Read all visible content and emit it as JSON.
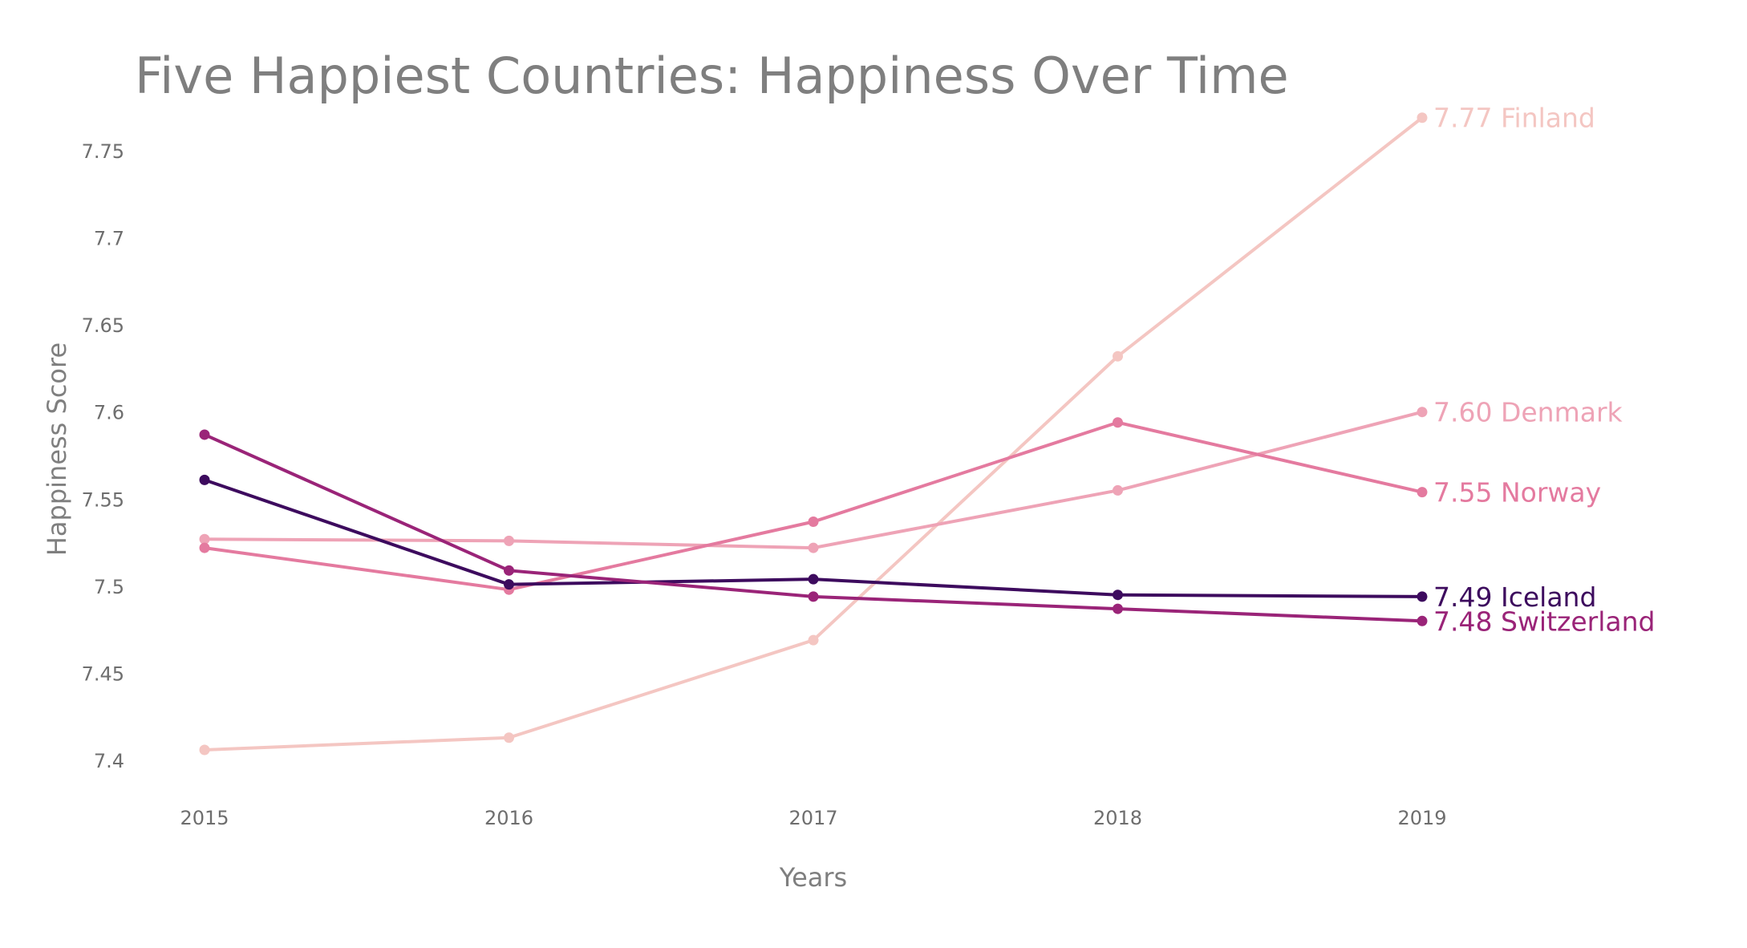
{
  "chart_data": {
    "type": "line",
    "title": "Five Happiest Countries: Happiness Over Time",
    "xlabel": "Years",
    "ylabel": "Happiness Score",
    "x": [
      2015,
      2016,
      2017,
      2018,
      2019
    ],
    "x_tick_labels": [
      "2015",
      "2016",
      "2017",
      "2018",
      "2019"
    ],
    "y_ticks": [
      7.4,
      7.45,
      7.5,
      7.55,
      7.6,
      7.65,
      7.7,
      7.75
    ],
    "y_tick_labels": [
      "7.4",
      "7.45",
      "7.5",
      "7.55",
      "7.6",
      "7.65",
      "7.7",
      "7.75"
    ],
    "ylim": [
      7.38,
      7.785
    ],
    "xlim": [
      2014.95,
      2019.8
    ],
    "grid": false,
    "legend": "none",
    "series": [
      {
        "name": "Finland",
        "end_label": "7.77 Finland",
        "color": "#f4c6c2",
        "values": [
          7.406,
          7.413,
          7.469,
          7.632,
          7.769
        ]
      },
      {
        "name": "Denmark",
        "end_label": "7.60 Denmark",
        "color": "#eea3b6",
        "values": [
          7.527,
          7.526,
          7.522,
          7.555,
          7.6
        ]
      },
      {
        "name": "Norway",
        "end_label": "7.55 Norway",
        "color": "#e47a9f",
        "values": [
          7.522,
          7.498,
          7.537,
          7.594,
          7.554
        ]
      },
      {
        "name": "Iceland",
        "end_label": "7.49 Iceland",
        "color": "#3d0b5e",
        "values": [
          7.561,
          7.501,
          7.504,
          7.495,
          7.494
        ]
      },
      {
        "name": "Switzerland",
        "end_label": "7.48 Switzerland",
        "color": "#9a2478",
        "values": [
          7.587,
          7.509,
          7.494,
          7.487,
          7.48
        ]
      }
    ]
  }
}
